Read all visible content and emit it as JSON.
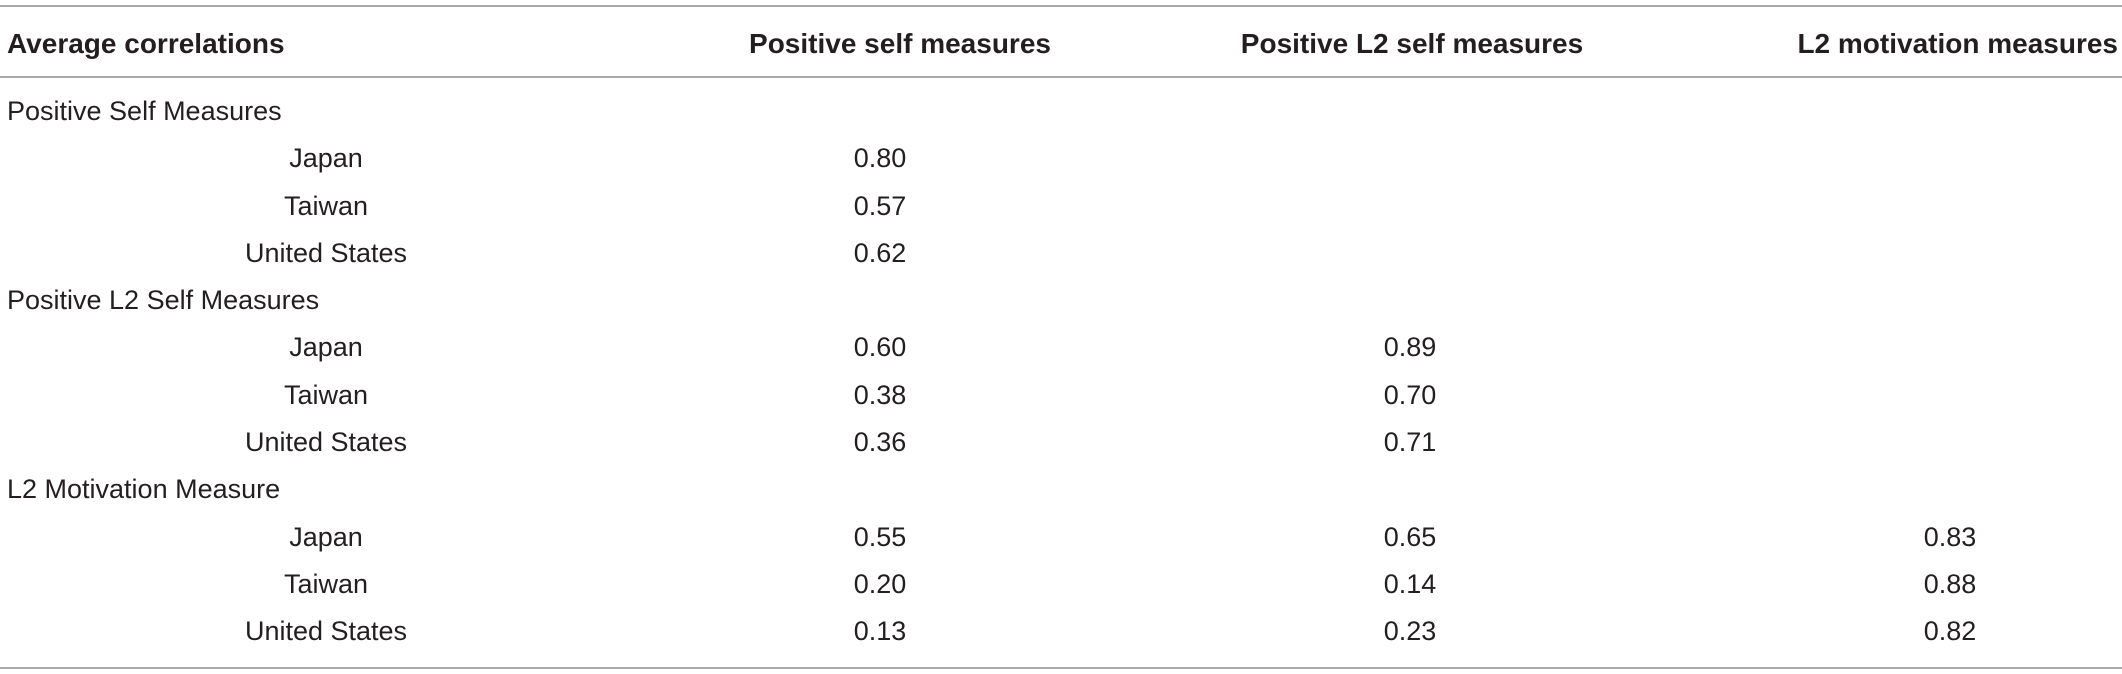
{
  "table": {
    "headers": [
      "Average correlations",
      "Positive self measures",
      "Positive L2 self measures",
      "L2 motivation measures"
    ],
    "groups": [
      {
        "label": "Positive Self Measures",
        "rows": [
          {
            "country": "Japan",
            "values": [
              "0.80",
              "",
              ""
            ]
          },
          {
            "country": "Taiwan",
            "values": [
              "0.57",
              "",
              ""
            ]
          },
          {
            "country": "United States",
            "values": [
              "0.62",
              "",
              ""
            ]
          }
        ]
      },
      {
        "label": "Positive L2 Self Measures",
        "rows": [
          {
            "country": "Japan",
            "values": [
              "0.60",
              "0.89",
              ""
            ]
          },
          {
            "country": "Taiwan",
            "values": [
              "0.38",
              "0.70",
              ""
            ]
          },
          {
            "country": "United States",
            "values": [
              "0.36",
              "0.71",
              ""
            ]
          }
        ]
      },
      {
        "label": "L2 Motivation Measure",
        "rows": [
          {
            "country": "Japan",
            "values": [
              "0.55",
              "0.65",
              "0.83"
            ]
          },
          {
            "country": "Taiwan",
            "values": [
              "0.20",
              "0.14",
              "0.88"
            ]
          },
          {
            "country": "United States",
            "values": [
              "0.13",
              "0.23",
              "0.82"
            ]
          }
        ]
      }
    ]
  }
}
